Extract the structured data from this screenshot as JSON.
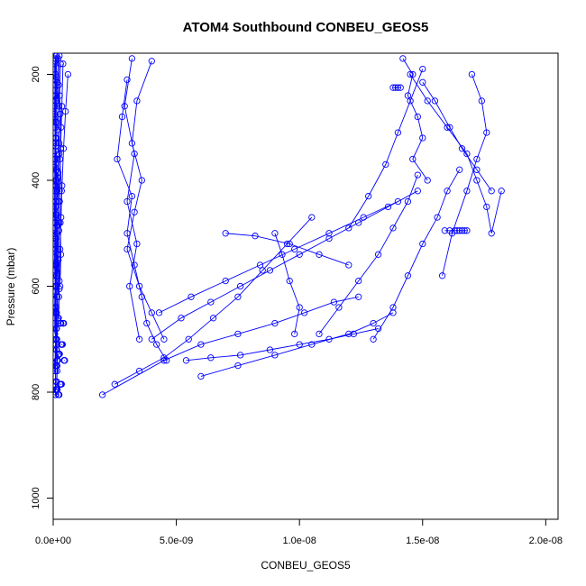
{
  "chart_data": {
    "type": "line",
    "title": "ATOM4 Southbound CONBEU_GEOS5",
    "xlabel": "CONBEU_GEOS5",
    "ylabel": "Pressure (mbar)",
    "xlim": [
      0,
      2.05e-08
    ],
    "ylim": [
      1040,
      160
    ],
    "y_inverted": true,
    "grid": false,
    "legend": "none",
    "x_ticks": [
      0,
      5e-09,
      1e-08,
      1.5e-08,
      2e-08
    ],
    "x_tick_labels": [
      "0.0e+00",
      "5.0e-09",
      "1.0e-08",
      "1.5e-08",
      "2.0e-08"
    ],
    "y_ticks": [
      200,
      400,
      600,
      800,
      1000
    ],
    "y_tick_labels": [
      "200",
      "400",
      "600",
      "800",
      "1000"
    ],
    "color": "#0000ff",
    "marker": "open-circle",
    "series": [
      {
        "x": [
          1e-10,
          9e-11,
          1.1e-10,
          8e-11,
          1e-10,
          9e-11,
          1.2e-10,
          1e-10,
          8e-11,
          1.1e-10,
          9e-11,
          1e-10,
          9e-11,
          1.2e-10,
          1e-10,
          9e-11
        ],
        "y": [
          170,
          210,
          250,
          290,
          330,
          370,
          410,
          450,
          490,
          530,
          570,
          610,
          650,
          700,
          750,
          800
        ]
      },
      {
        "x": [
          7e-11,
          8e-11,
          6e-11,
          7e-11,
          9e-11,
          7e-11,
          6e-11,
          8e-11,
          7e-11,
          6e-11,
          8e-11,
          7e-11,
          9e-11,
          7e-11
        ],
        "y": [
          175,
          220,
          260,
          300,
          345,
          390,
          430,
          470,
          515,
          560,
          600,
          650,
          700,
          760
        ]
      },
      {
        "x": [
          1.4e-10,
          1.2e-10,
          1.5e-10,
          1.3e-10,
          1.1e-10,
          1.4e-10,
          1.6e-10,
          1.3e-10,
          1.2e-10,
          1.5e-10,
          1.3e-10,
          1.4e-10,
          1.2e-10
        ],
        "y": [
          165,
          205,
          245,
          290,
          335,
          380,
          420,
          465,
          510,
          555,
          600,
          650,
          720
        ]
      },
      {
        "x": [
          6e-11,
          7e-11,
          6e-11,
          8e-11,
          6e-11,
          7e-11,
          5e-11,
          7e-11,
          6e-11,
          8e-11,
          6e-11,
          7e-11
        ],
        "y": [
          180,
          230,
          275,
          320,
          360,
          410,
          455,
          500,
          545,
          590,
          640,
          690
        ]
      },
      {
        "x": [
          2e-10,
          1.7e-10,
          2.2e-10,
          1.8e-10,
          2.4e-10,
          1.9e-10,
          2.1e-10,
          1.6e-10,
          2e-10,
          1.8e-10,
          2.3e-10,
          1.9e-10
        ],
        "y": [
          170,
          215,
          260,
          305,
          350,
          395,
          440,
          485,
          530,
          575,
          620,
          665
        ]
      },
      {
        "x": [
          1e-10,
          1.1e-10,
          9e-11,
          1.2e-10,
          1e-10,
          1.3e-10,
          1.1e-10,
          9e-11,
          1e-10,
          1.2e-10,
          1e-10
        ],
        "y": [
          200,
          240,
          280,
          320,
          360,
          400,
          440,
          480,
          520,
          560,
          600
        ]
      },
      {
        "x": [
          8e-11,
          1e-10,
          7e-11,
          9e-11,
          1.1e-10,
          8e-11,
          1e-10,
          9e-11,
          1.1e-10,
          9e-11,
          1e-10,
          8e-11
        ],
        "y": [
          165,
          200,
          240,
          285,
          330,
          375,
          420,
          465,
          510,
          560,
          610,
          660
        ]
      },
      {
        "x": [
          2.5e-10,
          2.2e-10,
          2.8e-10,
          2.4e-10,
          2e-10,
          2.6e-10,
          2.3e-10,
          2.1e-10,
          2.5e-10,
          2.2e-10
        ],
        "y": [
          165,
          220,
          275,
          330,
          385,
          440,
          495,
          550,
          605,
          660
        ]
      },
      {
        "x": [
          3e-10,
          2.6e-10,
          3.2e-10,
          2.7e-10,
          3.4e-10,
          2.9e-10,
          3.1e-10,
          2.8e-10
        ],
        "y": [
          180,
          240,
          300,
          360,
          420,
          480,
          540,
          600
        ]
      },
      {
        "x": [
          1.5e-10,
          1.8e-10,
          1.4e-10,
          1.6e-10,
          1.9e-10,
          1.5e-10,
          1.7e-10,
          1.4e-10
        ],
        "y": [
          500,
          540,
          580,
          620,
          660,
          700,
          740,
          780
        ]
      },
      {
        "x": [
          1.3e-10,
          1.5e-10,
          1.2e-10,
          1.4e-10,
          1.6e-10,
          1.3e-10
        ],
        "y": [
          560,
          620,
          680,
          720,
          760,
          795
        ]
      },
      {
        "x": [
          9e-11,
          1e-10,
          1.1e-10,
          1.3e-10,
          1.5e-10,
          1.7e-10
        ],
        "y": [
          795,
          795,
          795,
          795,
          795,
          795
        ]
      },
      {
        "x": [
          9e-11,
          1e-10,
          9e-11,
          1.1e-10
        ],
        "y": [
          760,
          780,
          805,
          805
        ]
      },
      {
        "x": [
          1.2e-10,
          1.4e-10,
          1.2e-10,
          1.5e-10,
          1.3e-10,
          1.6e-10
        ],
        "y": [
          640,
          680,
          710,
          740,
          750,
          750
        ]
      },
      {
        "x": [
          1.8e-10,
          2e-10,
          2.2e-10,
          2.4e-10,
          2.6e-10
        ],
        "y": [
          740,
          730,
          728,
          728,
          728
        ]
      },
      {
        "x": [
          2.1e-10,
          2.2e-10,
          2.3e-10,
          2.4e-10
        ],
        "y": [
          805,
          805,
          805,
          805
        ]
      },
      {
        "x": [
          4e-10,
          3.5e-10,
          3e-10,
          2.6e-10,
          2.4e-10
        ],
        "y": [
          180,
          260,
          340,
          420,
          480
        ]
      },
      {
        "x": [
          6e-10,
          5e-10,
          4.2e-10,
          3.6e-10,
          3.2e-10,
          2.8e-10,
          2.5e-10
        ],
        "y": [
          200,
          270,
          340,
          410,
          470,
          530,
          590
        ]
      },
      {
        "x": [
          2.9e-10,
          2.9e-10,
          3e-10,
          3.1e-10,
          3.2e-10
        ],
        "y": [
          670,
          670,
          670,
          670,
          670
        ]
      },
      {
        "x": [
          3.2e-10,
          3.3e-10,
          3.5e-10,
          3.6e-10,
          3.8e-10
        ],
        "y": [
          710,
          710,
          710,
          710,
          710
        ]
      },
      {
        "x": [
          2.8e-10,
          3e-10,
          3.2e-10,
          3.4e-10
        ],
        "y": [
          785,
          785,
          785,
          785
        ]
      },
      {
        "x": [
          4e-10,
          4.1e-10,
          4.2e-10,
          4.3e-10
        ],
        "y": [
          670,
          670,
          670,
          670
        ]
      },
      {
        "x": [
          4.4e-10,
          4.5e-10,
          4.6e-10,
          4.7e-10
        ],
        "y": [
          740,
          740,
          740,
          740
        ]
      },
      {
        "x": [
          3e-09,
          2.8e-09,
          2.6e-09,
          3.2e-09,
          3e-09,
          3.3e-09,
          3.6e-09,
          3.8e-09,
          4.2e-09,
          4.6e-09
        ],
        "y": [
          210,
          280,
          360,
          430,
          500,
          560,
          620,
          670,
          710,
          740
        ]
      },
      {
        "x": [
          4e-09,
          3.4e-09,
          3.2e-09,
          3.6e-09,
          3.3e-09,
          3e-09,
          3.5e-09,
          4e-09,
          4.5e-09
        ],
        "y": [
          175,
          250,
          330,
          400,
          460,
          530,
          600,
          650,
          700
        ]
      },
      {
        "x": [
          1.2e-08,
          1.28e-08,
          1.35e-08,
          1.4e-08,
          1.45e-08,
          1.5e-08
        ],
        "y": [
          490,
          430,
          370,
          310,
          250,
          190
        ]
      },
      {
        "x": [
          1.45e-08,
          1.52e-08,
          1.6e-08,
          1.68e-08,
          1.72e-08,
          1.76e-08,
          1.78e-08,
          1.82e-08
        ],
        "y": [
          200,
          250,
          300,
          350,
          400,
          450,
          500,
          420
        ]
      },
      {
        "x": [
          1.3e-08,
          1.38e-08,
          1.44e-08,
          1.5e-08,
          1.56e-08,
          1.6e-08,
          1.65e-08
        ],
        "y": [
          700,
          640,
          580,
          520,
          470,
          420,
          380
        ]
      },
      {
        "x": [
          1.7e-08,
          1.74e-08,
          1.76e-08,
          1.72e-08,
          1.68e-08,
          1.62e-08,
          1.58e-08
        ],
        "y": [
          200,
          250,
          310,
          360,
          420,
          500,
          580
        ]
      },
      {
        "x": [
          1.08e-08,
          1.16e-08,
          1.24e-08,
          1.32e-08,
          1.38e-08,
          1.44e-08,
          1.48e-08
        ],
        "y": [
          690,
          640,
          590,
          540,
          490,
          440,
          390
        ]
      },
      {
        "x": [
          5.4e-09,
          6.4e-09,
          7.6e-09,
          8.8e-09,
          1e-08,
          1.12e-08,
          1.22e-08,
          1.32e-08
        ],
        "y": [
          740,
          735,
          730,
          720,
          710,
          700,
          690,
          680
        ]
      },
      {
        "x": [
          6e-09,
          7.5e-09,
          9e-09,
          1.05e-08,
          1.2e-08,
          1.3e-08,
          1.38e-08
        ],
        "y": [
          770,
          750,
          730,
          710,
          690,
          670,
          650
        ]
      },
      {
        "x": [
          2e-09,
          4.5e-09,
          6e-09,
          7.5e-09,
          9e-09,
          1.02e-08,
          1.14e-08,
          1.24e-08
        ],
        "y": [
          805,
          740,
          710,
          690,
          670,
          650,
          630,
          620
        ]
      },
      {
        "x": [
          2.5e-09,
          3.5e-09,
          4.5e-09,
          5.5e-09,
          6.5e-09,
          7.5e-09,
          8.5e-09,
          9.5e-09,
          1.05e-08
        ],
        "y": [
          785,
          760,
          735,
          700,
          660,
          620,
          570,
          520,
          470
        ]
      },
      {
        "x": [
          4.3e-09,
          5.6e-09,
          7e-09,
          8.4e-09,
          9.8e-09,
          1.12e-08,
          1.26e-08,
          1.4e-08
        ],
        "y": [
          650,
          620,
          590,
          560,
          530,
          500,
          470,
          440
        ]
      },
      {
        "x": [
          4e-09,
          5.2e-09,
          6.4e-09,
          7.6e-09,
          8.8e-09,
          1e-08,
          1.12e-08,
          1.24e-08,
          1.36e-08,
          1.48e-08
        ],
        "y": [
          700,
          660,
          630,
          600,
          570,
          540,
          510,
          480,
          450,
          420
        ]
      },
      {
        "x": [
          1.59e-08,
          1.61e-08,
          1.63e-08,
          1.64e-08,
          1.65e-08,
          1.66e-08,
          1.67e-08,
          1.68e-08
        ],
        "y": [
          495,
          495,
          495,
          495,
          495,
          495,
          495,
          495
        ]
      },
      {
        "x": [
          1.38e-08,
          1.39e-08,
          1.4e-08,
          1.41e-08
        ],
        "y": [
          225,
          225,
          225,
          225
        ]
      },
      {
        "x": [
          1.5e-08,
          1.55e-08,
          1.61e-08,
          1.66e-08,
          1.72e-08,
          1.78e-08
        ],
        "y": [
          215,
          250,
          300,
          340,
          380,
          420
        ]
      },
      {
        "x": [
          1.42e-08,
          1.46e-08,
          1.44e-08,
          1.48e-08,
          1.5e-08,
          1.46e-08,
          1.52e-08
        ],
        "y": [
          170,
          200,
          240,
          280,
          320,
          360,
          400
        ]
      },
      {
        "x": [
          3.2e-09,
          2.9e-09,
          3.3e-09,
          3e-09,
          3.4e-09,
          3.1e-09,
          3.5e-09
        ],
        "y": [
          170,
          260,
          350,
          440,
          520,
          600,
          700
        ]
      },
      {
        "x": [
          9e-09,
          9.3e-09,
          9.6e-09,
          1e-08,
          9.8e-09
        ],
        "y": [
          500,
          540,
          590,
          640,
          690
        ]
      },
      {
        "x": [
          7e-09,
          8.2e-09,
          9.6e-09,
          1.08e-08,
          1.2e-08
        ],
        "y": [
          500,
          505,
          520,
          540,
          560
        ]
      }
    ]
  }
}
